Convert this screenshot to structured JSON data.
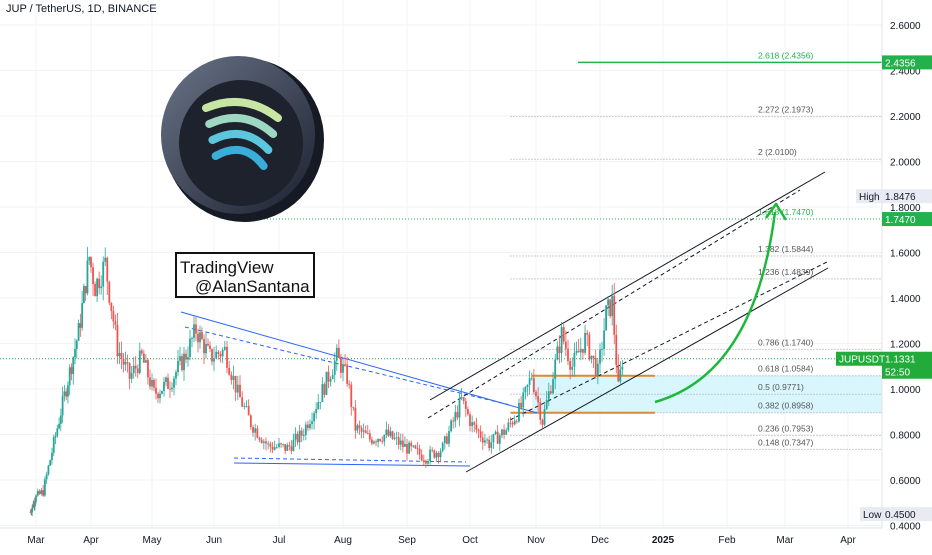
{
  "header": {
    "symbol": "JUP / TetherUS, 1D, BINANCE"
  },
  "watermark": {
    "line1": "TradingView",
    "line2": "@AlanSantana"
  },
  "colors": {
    "up": "#26a69a",
    "down": "#ef5350",
    "fib_line": "#9e9e9e",
    "fib_target": "#22b14c",
    "golden_zone": "#d1f4fb",
    "orange": "#e6861d",
    "channel": "#131722",
    "wedge": "#2962ff",
    "arrow": "#1db83a",
    "price_label": "#22ab3a"
  },
  "chart_data": {
    "type": "candlestick",
    "symbol": "JUPUSDT",
    "timeframe": "1D",
    "exchange": "BINANCE",
    "x_labels": [
      "Mar",
      "Apr",
      "May",
      "Jun",
      "Jul",
      "Aug",
      "Sep",
      "Oct",
      "Nov",
      "Dec",
      "2025",
      "Feb",
      "Mar",
      "Apr"
    ],
    "y_ticks": [
      "0.4000",
      "0.6000",
      "0.8000",
      "1.0000",
      "1.2000",
      "1.4000",
      "1.6000",
      "1.8000",
      "2.0000",
      "2.2000",
      "2.4000",
      "2.6000"
    ],
    "ylim": [
      0.4,
      2.68
    ],
    "price_series": {
      "name": "JUPUSDT",
      "waypoints": [
        {
          "date": "2024-02-20",
          "price": 0.46
        },
        {
          "date": "2024-03-05",
          "price": 0.55
        },
        {
          "date": "2024-03-15",
          "price": 0.9
        },
        {
          "date": "2024-03-25",
          "price": 1.25
        },
        {
          "date": "2024-03-31",
          "price": 1.58
        },
        {
          "date": "2024-04-03",
          "price": 1.45
        },
        {
          "date": "2024-04-08",
          "price": 1.55
        },
        {
          "date": "2024-04-14",
          "price": 1.18
        },
        {
          "date": "2024-04-20",
          "price": 1.05
        },
        {
          "date": "2024-04-26",
          "price": 1.14
        },
        {
          "date": "2024-05-02",
          "price": 0.98
        },
        {
          "date": "2024-05-10",
          "price": 1.03
        },
        {
          "date": "2024-05-18",
          "price": 1.15
        },
        {
          "date": "2024-05-23",
          "price": 1.26
        },
        {
          "date": "2024-05-30",
          "price": 1.14
        },
        {
          "date": "2024-06-06",
          "price": 1.17
        },
        {
          "date": "2024-06-12",
          "price": 0.98
        },
        {
          "date": "2024-06-18",
          "price": 0.85
        },
        {
          "date": "2024-06-26",
          "price": 0.75
        },
        {
          "date": "2024-07-05",
          "price": 0.74
        },
        {
          "date": "2024-07-12",
          "price": 0.8
        },
        {
          "date": "2024-07-20",
          "price": 0.95
        },
        {
          "date": "2024-07-29",
          "price": 1.14
        },
        {
          "date": "2024-08-03",
          "price": 1.05
        },
        {
          "date": "2024-08-07",
          "price": 0.83
        },
        {
          "date": "2024-08-14",
          "price": 0.78
        },
        {
          "date": "2024-08-22",
          "price": 0.8
        },
        {
          "date": "2024-09-01",
          "price": 0.74
        },
        {
          "date": "2024-09-10",
          "price": 0.7
        },
        {
          "date": "2024-09-18",
          "price": 0.74
        },
        {
          "date": "2024-09-27",
          "price": 0.95
        },
        {
          "date": "2024-10-02",
          "price": 0.84
        },
        {
          "date": "2024-10-10",
          "price": 0.76
        },
        {
          "date": "2024-10-18",
          "price": 0.82
        },
        {
          "date": "2024-10-25",
          "price": 0.92
        },
        {
          "date": "2024-10-30",
          "price": 1.06
        },
        {
          "date": "2024-11-04",
          "price": 0.86
        },
        {
          "date": "2024-11-08",
          "price": 1.02
        },
        {
          "date": "2024-11-13",
          "price": 1.24
        },
        {
          "date": "2024-11-18",
          "price": 1.1
        },
        {
          "date": "2024-11-24",
          "price": 1.22
        },
        {
          "date": "2024-11-30",
          "price": 1.07
        },
        {
          "date": "2024-12-04",
          "price": 1.33
        },
        {
          "date": "2024-12-07",
          "price": 1.38
        },
        {
          "date": "2024-12-10",
          "price": 1.0
        },
        {
          "date": "2024-12-12",
          "price": 1.13
        }
      ]
    },
    "fib_levels": [
      {
        "label": "2.618 (2.4356)",
        "value": 2.4356
      },
      {
        "label": "2.272 (2.1973)",
        "value": 2.1973
      },
      {
        "label": "2 (2.0100)",
        "value": 2.01
      },
      {
        "label": "1.618 (1.7470)",
        "value": 1.747
      },
      {
        "label": "1.382 (1.5844)",
        "value": 1.5844
      },
      {
        "label": "1.236 (1.4839)",
        "value": 1.4839
      },
      {
        "label": "0.786 (1.1740)",
        "value": 1.174
      },
      {
        "label": "0.618 (1.0584)",
        "value": 1.0584
      },
      {
        "label": "0.5 (0.9771)",
        "value": 0.9771
      },
      {
        "label": "0.382 (0.8958)",
        "value": 0.8958
      },
      {
        "label": "0.236 (0.7953)",
        "value": 0.7953
      },
      {
        "label": "0.148 (0.7347)",
        "value": 0.7347
      }
    ],
    "price_labels": {
      "target_1": "2.4356",
      "high_text": "High",
      "high_value": "1.8476",
      "target_2": "1.7470",
      "symbol_text": "JUPUSDT",
      "current_value": "1.1331",
      "countdown": "52:50",
      "low_text": "Low",
      "low_value": "0.4500"
    }
  }
}
